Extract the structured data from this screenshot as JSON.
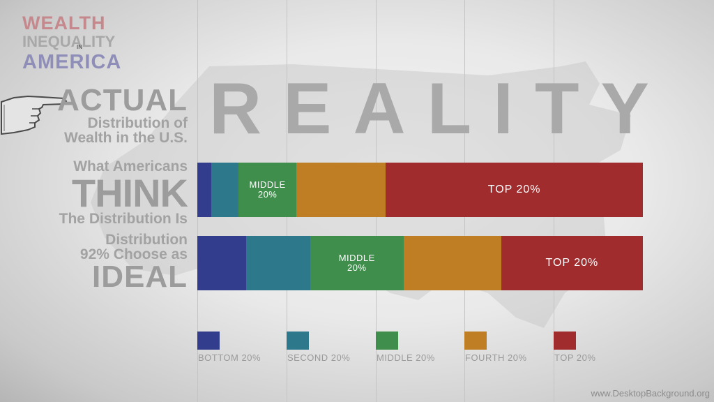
{
  "logo": {
    "line1": "WEALTH",
    "line2": "INEQUALITY",
    "line_small": "IN",
    "line3": "AMERICA"
  },
  "headline": "REALITY",
  "labels": {
    "actual": {
      "big": "ACTUAL",
      "line1": "Distribution of",
      "line2": "Wealth in the U.S."
    },
    "think": {
      "line1": "What Americans",
      "big": "THINK",
      "line2": "The Distribution Is"
    },
    "ideal": {
      "line1": "Distribution",
      "line2": "92% Choose as",
      "big": "IDEAL"
    }
  },
  "colors": {
    "bottom": "#333d8e",
    "second": "#2e788b",
    "middle": "#3f8e4c",
    "fourth": "#c07e24",
    "top": "#a02c2e"
  },
  "chart_data": {
    "type": "bar",
    "orientation": "horizontal-stacked",
    "unit": "percent",
    "categories": [
      "What Americans THINK The Distribution Is",
      "Distribution 92% Choose as IDEAL"
    ],
    "series": [
      {
        "name": "BOTTOM 20%",
        "color": "#333d8e",
        "values": [
          3.2,
          11.0
        ]
      },
      {
        "name": "SECOND 20%",
        "color": "#2e788b",
        "values": [
          6.0,
          14.3
        ]
      },
      {
        "name": "MIDDLE 20%",
        "color": "#3f8e4c",
        "values": [
          13.1,
          21.0
        ]
      },
      {
        "name": "FOURTH 20%",
        "color": "#c07e24",
        "values": [
          20.0,
          21.9
        ]
      },
      {
        "name": "TOP 20%",
        "color": "#a02c2e",
        "values": [
          57.7,
          31.8
        ]
      }
    ],
    "segment_labels": [
      [
        "",
        "",
        "MIDDLE\n20%",
        "",
        "TOP 20%"
      ],
      [
        "",
        "",
        "MIDDLE\n20%",
        "",
        "TOP 20%"
      ]
    ],
    "xlim": [
      0,
      100
    ],
    "legend_position": "bottom",
    "grid": true
  },
  "watermark": "www.DesktopBackground.org"
}
